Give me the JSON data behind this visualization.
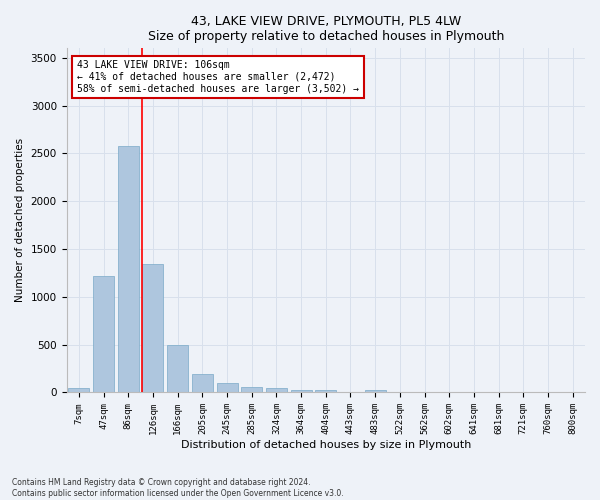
{
  "title": "43, LAKE VIEW DRIVE, PLYMOUTH, PL5 4LW",
  "subtitle": "Size of property relative to detached houses in Plymouth",
  "xlabel": "Distribution of detached houses by size in Plymouth",
  "ylabel": "Number of detached properties",
  "bar_labels": [
    "7sqm",
    "47sqm",
    "86sqm",
    "126sqm",
    "166sqm",
    "205sqm",
    "245sqm",
    "285sqm",
    "324sqm",
    "364sqm",
    "404sqm",
    "443sqm",
    "483sqm",
    "522sqm",
    "562sqm",
    "602sqm",
    "641sqm",
    "681sqm",
    "721sqm",
    "760sqm",
    "800sqm"
  ],
  "bar_values": [
    50,
    1220,
    2580,
    1340,
    500,
    190,
    100,
    55,
    45,
    30,
    30,
    0,
    30,
    0,
    0,
    0,
    0,
    0,
    0,
    0,
    0
  ],
  "bar_color": "#aec6de",
  "bar_edge_color": "#7aaac8",
  "grid_color": "#d8e0ec",
  "background_color": "#eef2f8",
  "red_line_x": 2.55,
  "annotation_text": "43 LAKE VIEW DRIVE: 106sqm\n← 41% of detached houses are smaller (2,472)\n58% of semi-detached houses are larger (3,502) →",
  "annotation_box_color": "#ffffff",
  "annotation_border_color": "#cc0000",
  "ylim": [
    0,
    3600
  ],
  "yticks": [
    0,
    500,
    1000,
    1500,
    2000,
    2500,
    3000,
    3500
  ],
  "footer_line1": "Contains HM Land Registry data © Crown copyright and database right 2024.",
  "footer_line2": "Contains public sector information licensed under the Open Government Licence v3.0."
}
